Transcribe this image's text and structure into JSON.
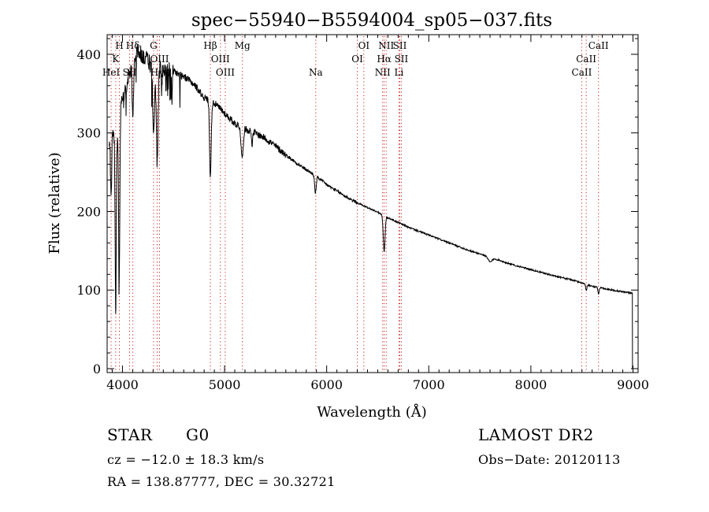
{
  "chart_data": {
    "type": "line",
    "title": "spec−55940−B5594004_sp05−037.fits",
    "xlabel": "Wavelength (Å)",
    "ylabel": "Flux (relative)",
    "xlim": [
      3850,
      9050
    ],
    "ylim": [
      -5,
      425
    ],
    "x_ticks": [
      4000,
      5000,
      6000,
      7000,
      8000,
      9000
    ],
    "x_tick_labels": [
      "4000",
      "5000",
      "6000",
      "7000",
      "8000",
      "9000"
    ],
    "y_ticks": [
      0,
      100,
      200,
      300,
      400
    ],
    "y_tick_labels": [
      "0",
      "100",
      "200",
      "300",
      "400"
    ],
    "grid": false,
    "series": [
      {
        "name": "flux",
        "continuum": [
          [
            3870,
            280
          ],
          [
            3900,
            300
          ],
          [
            3950,
            310
          ],
          [
            4000,
            340
          ],
          [
            4050,
            365
          ],
          [
            4100,
            395
          ],
          [
            4150,
            405
          ],
          [
            4200,
            398
          ],
          [
            4300,
            385
          ],
          [
            4400,
            382
          ],
          [
            4500,
            378
          ],
          [
            4600,
            372
          ],
          [
            4700,
            362
          ],
          [
            4800,
            345
          ],
          [
            4900,
            338
          ],
          [
            5000,
            325
          ],
          [
            5100,
            312
          ],
          [
            5200,
            305
          ],
          [
            5300,
            300
          ],
          [
            5400,
            293
          ],
          [
            5500,
            283
          ],
          [
            5600,
            272
          ],
          [
            5700,
            262
          ],
          [
            5800,
            253
          ],
          [
            5900,
            245
          ],
          [
            6000,
            234
          ],
          [
            6100,
            226
          ],
          [
            6200,
            218
          ],
          [
            6300,
            211
          ],
          [
            6400,
            205
          ],
          [
            6500,
            199
          ],
          [
            6600,
            192
          ],
          [
            6700,
            186
          ],
          [
            6800,
            180
          ],
          [
            7000,
            170
          ],
          [
            7200,
            160
          ],
          [
            7400,
            150
          ],
          [
            7600,
            142
          ],
          [
            7800,
            133
          ],
          [
            8000,
            126
          ],
          [
            8200,
            119
          ],
          [
            8400,
            113
          ],
          [
            8600,
            105
          ],
          [
            8800,
            100
          ],
          [
            8990,
            96
          ]
        ],
        "absorption_features": [
          {
            "center": 3889,
            "depth": 80,
            "width": 5
          },
          {
            "center": 3934,
            "depth": 230,
            "width": 6
          },
          {
            "center": 3968,
            "depth": 200,
            "width": 6
          },
          {
            "center": 4102,
            "depth": 80,
            "width": 7
          },
          {
            "center": 4305,
            "depth": 90,
            "width": 8
          },
          {
            "center": 4340,
            "depth": 120,
            "width": 9
          },
          {
            "center": 4383,
            "depth": 25,
            "width": 5
          },
          {
            "center": 4861,
            "depth": 95,
            "width": 8
          },
          {
            "center": 5172,
            "depth": 40,
            "width": 10
          },
          {
            "center": 5270,
            "depth": 15,
            "width": 6
          },
          {
            "center": 5890,
            "depth": 22,
            "width": 8
          },
          {
            "center": 6563,
            "depth": 45,
            "width": 9
          },
          {
            "center": 7600,
            "depth": 6,
            "width": 20
          },
          {
            "center": 8542,
            "depth": 8,
            "width": 6
          },
          {
            "center": 8662,
            "depth": 8,
            "width": 6
          }
        ],
        "end_drop": {
          "x": 8995,
          "y": 0
        }
      }
    ],
    "line_markers": [
      {
        "label": "H",
        "x": 3970,
        "row": 1
      },
      {
        "label": "K",
        "x": 3934,
        "row": 2
      },
      {
        "label": "HeI",
        "x": 3889,
        "row": 3
      },
      {
        "label": "SII",
        "x": 4070,
        "row": 3
      },
      {
        "label": "Hδ",
        "x": 4102,
        "row": 1
      },
      {
        "label": "G",
        "x": 4305,
        "row": 1
      },
      {
        "label": "OIII",
        "x": 4363,
        "row": 2
      },
      {
        "label": "Hγ",
        "x": 4340,
        "row": 3
      },
      {
        "label": "Hβ",
        "x": 4861,
        "row": 1
      },
      {
        "label": "OIII",
        "x": 4959,
        "row": 2
      },
      {
        "label": "OIII",
        "x": 5007,
        "row": 3
      },
      {
        "label": "Mg",
        "x": 5175,
        "row": 1
      },
      {
        "label": "Na",
        "x": 5893,
        "row": 3
      },
      {
        "label": "OI",
        "x": 6364,
        "row": 1
      },
      {
        "label": "OI",
        "x": 6300,
        "row": 2
      },
      {
        "label": "NII",
        "x": 6583,
        "row": 1
      },
      {
        "label": "Hα",
        "x": 6563,
        "row": 2
      },
      {
        "label": "NII",
        "x": 6548,
        "row": 3
      },
      {
        "label": "SII",
        "x": 6716,
        "row": 1
      },
      {
        "label": "SII",
        "x": 6731,
        "row": 2
      },
      {
        "label": "Li",
        "x": 6708,
        "row": 3
      },
      {
        "label": "CaII",
        "x": 8662,
        "row": 1
      },
      {
        "label": "CaII",
        "x": 8542,
        "row": 2
      },
      {
        "label": "CaII",
        "x": 8498,
        "row": 3
      }
    ],
    "colors": {
      "spectrum": "#000000",
      "markers": "#d02020",
      "axes": "#000000"
    }
  },
  "info": {
    "object_class": "STAR",
    "subclass": "G0",
    "survey": "LAMOST DR2",
    "redshift": "cz = −12.0 ± 18.3 km/s",
    "obs_date": "Obs−Date: 20120113",
    "coords": "RA = 138.87777, DEC =  30.32721"
  }
}
